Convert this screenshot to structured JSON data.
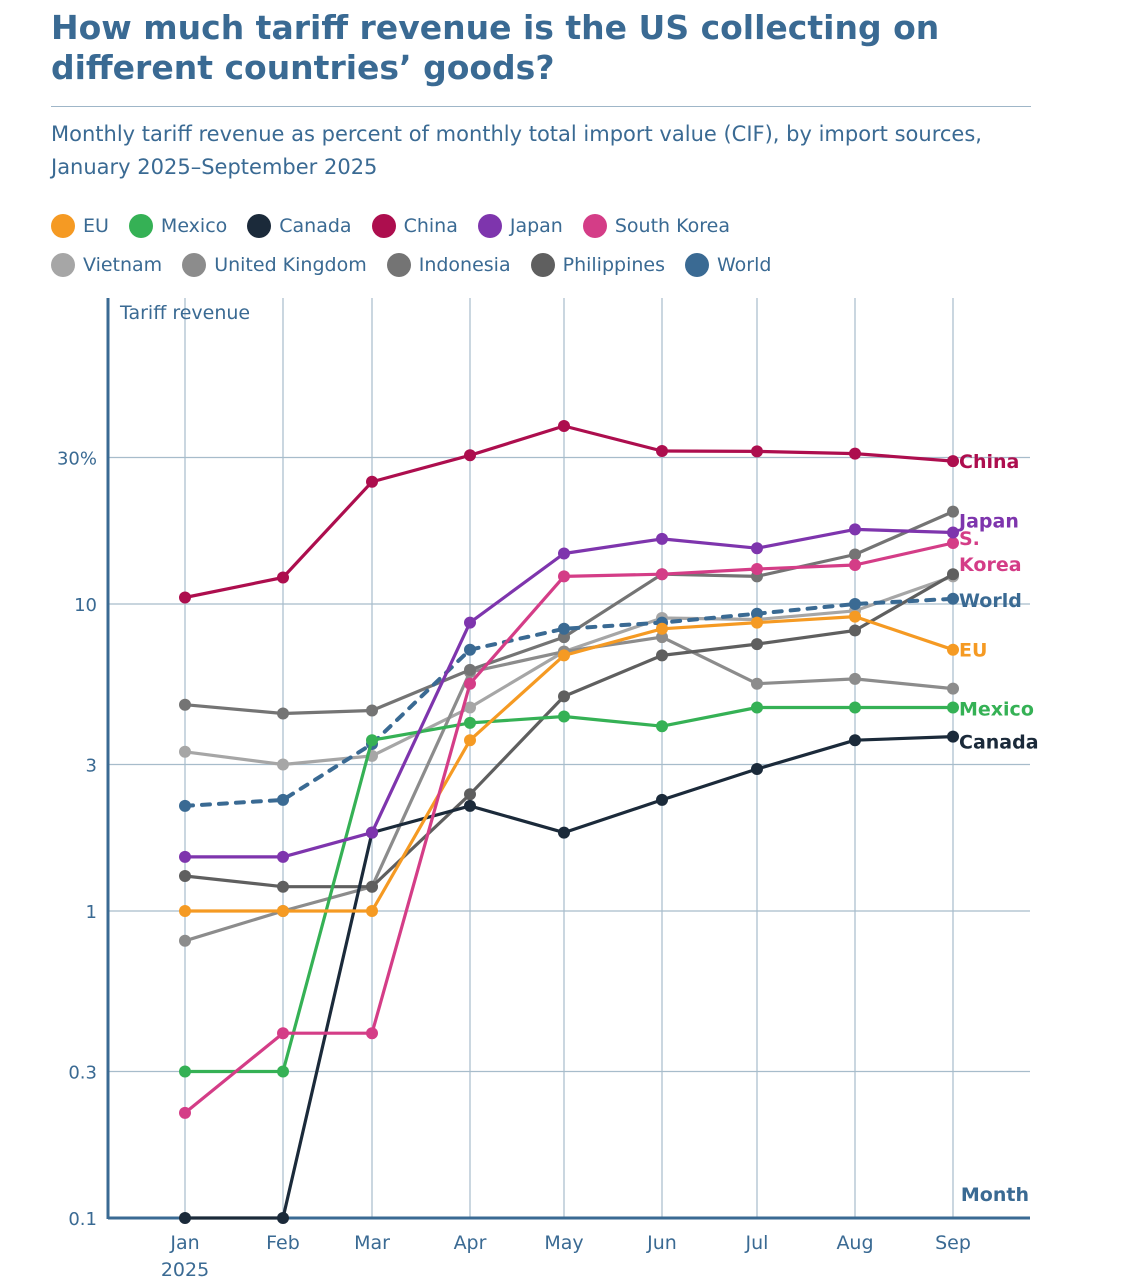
{
  "title": "How much tariff revenue is the US collecting on different countries’ goods?",
  "subtitle": "Monthly tariff revenue as percent of monthly total import value (CIF), by import sources, January 2025–September 2025",
  "legend_rows": [
    [
      "EU",
      "Mexico",
      "Canada",
      "China",
      "Japan",
      "South Korea"
    ],
    [
      "Vietnam",
      "United Kingdom",
      "Indonesia",
      "Philippines",
      "World"
    ]
  ],
  "chart_data": {
    "type": "line",
    "title": "How much tariff revenue is the US collecting on different countries’ goods?",
    "ylabel": "Tariff revenue",
    "xlabel": "Month",
    "yscale": "log",
    "ylim": [
      0.1,
      100
    ],
    "yticks": [
      0.1,
      0.3,
      1,
      3,
      10,
      30
    ],
    "ytick_labels": [
      "0.1",
      "0.3",
      "1",
      "3",
      "10",
      "30%"
    ],
    "categories": [
      "Jan",
      "Feb",
      "Mar",
      "Apr",
      "May",
      "Jun",
      "Jul",
      "Aug",
      "Sep"
    ],
    "first_year_label": "2025",
    "series": [
      {
        "name": "Vietnam",
        "color": "#a6a6a6",
        "values": [
          3.3,
          3.0,
          3.2,
          4.6,
          7.0,
          9.0,
          8.9,
          9.5,
          12.3
        ],
        "end_label": ""
      },
      {
        "name": "United Kingdom",
        "color": "#8c8c8c",
        "values": [
          0.8,
          1.0,
          1.2,
          6.0,
          7.0,
          7.8,
          5.5,
          5.7,
          5.3
        ],
        "end_label": ""
      },
      {
        "name": "Indonesia",
        "color": "#747474",
        "values": [
          4.7,
          4.4,
          4.5,
          6.1,
          7.8,
          12.5,
          12.3,
          14.5,
          20.0
        ],
        "end_label": ""
      },
      {
        "name": "Philippines",
        "color": "#5f5f5f",
        "values": [
          1.3,
          1.2,
          1.2,
          2.4,
          5.0,
          6.8,
          7.4,
          8.2,
          12.5
        ],
        "end_label": ""
      },
      {
        "name": "World",
        "color": "#3a6a93",
        "dashed": true,
        "values": [
          2.2,
          2.3,
          3.5,
          7.1,
          8.3,
          8.7,
          9.3,
          10.0,
          10.4
        ],
        "end_label": "World"
      },
      {
        "name": "Canada",
        "color": "#1b2a3a",
        "values": [
          0.1,
          0.1,
          1.8,
          2.2,
          1.8,
          2.3,
          2.9,
          3.6,
          3.7
        ],
        "end_label": "Canada"
      },
      {
        "name": "Mexico",
        "color": "#35b155",
        "values": [
          0.3,
          0.3,
          3.6,
          4.1,
          4.3,
          4.0,
          4.6,
          4.6,
          4.6
        ],
        "end_label": "Mexico"
      },
      {
        "name": "EU",
        "color": "#f59a23",
        "values": [
          1.0,
          1.0,
          1.0,
          3.6,
          6.8,
          8.3,
          8.7,
          9.1,
          7.1
        ],
        "end_label": "EU"
      },
      {
        "name": "South Korea",
        "color": "#d43d87",
        "values": [
          0.22,
          0.4,
          0.4,
          5.5,
          12.3,
          12.5,
          13.0,
          13.4,
          15.8
        ],
        "end_label": "S. Korea"
      },
      {
        "name": "Japan",
        "color": "#7e35ad",
        "values": [
          1.5,
          1.5,
          1.8,
          8.7,
          14.6,
          16.3,
          15.2,
          17.5,
          17.1
        ],
        "end_label": "Japan"
      },
      {
        "name": "China",
        "color": "#ad0e4e",
        "values": [
          10.5,
          12.2,
          25.0,
          30.5,
          38.0,
          31.5,
          31.4,
          30.9,
          29.2
        ],
        "end_label": "China"
      }
    ]
  }
}
